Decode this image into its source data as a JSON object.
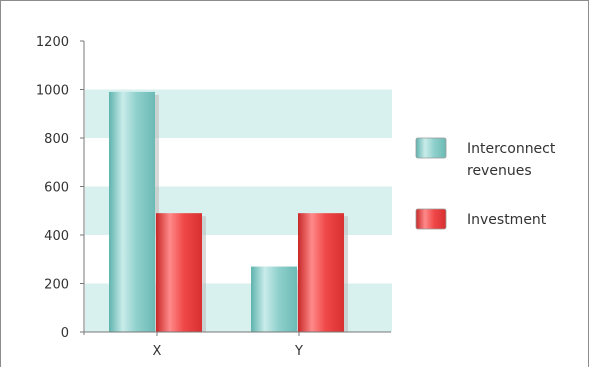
{
  "chart_data": {
    "type": "bar",
    "categories": [
      "X",
      "Y"
    ],
    "series": [
      {
        "name": "Interconnect revenues",
        "legend_lines": [
          "Interconnect",
          "revenues"
        ],
        "values": [
          990,
          270
        ],
        "color": "#8fd0cc"
      },
      {
        "name": "Investment",
        "legend_lines": [
          "Investment"
        ],
        "values": [
          490,
          490
        ],
        "color": "#f04848"
      }
    ],
    "ylim": [
      0,
      1200
    ],
    "yticks": [
      0,
      200,
      400,
      600,
      800,
      1000,
      1200
    ],
    "grid": "alternating horizontal bands",
    "band_color": "#d8f0ee",
    "legend_position": "right"
  }
}
